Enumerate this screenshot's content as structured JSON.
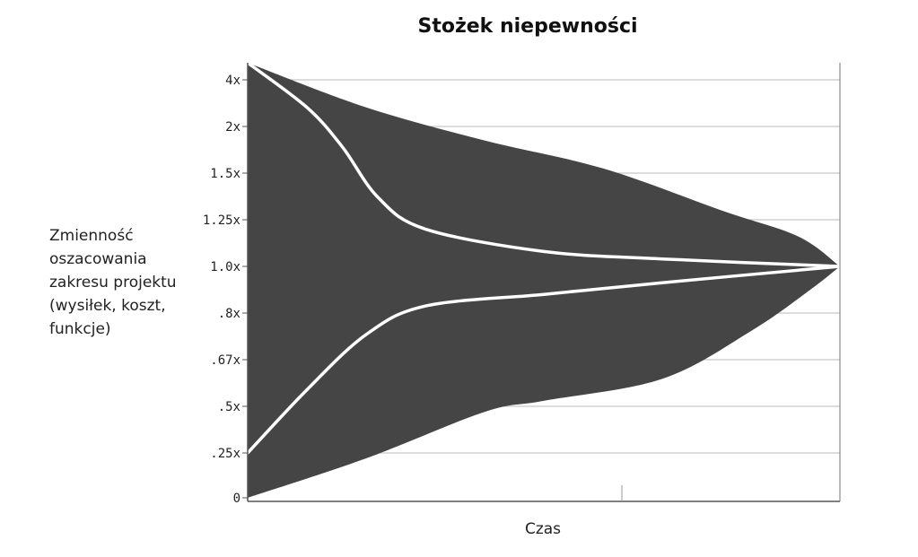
{
  "chart_data": {
    "type": "area",
    "title": "Stożek niepewności",
    "xlabel": "Czas",
    "ylabel_lines": [
      "Zmienność",
      "oszacowania",
      "zakresu projektu",
      "(wysiłek, koszt,",
      "funkcje)"
    ],
    "y_ticks": [
      "4x",
      "2x",
      "1.5x",
      "1.25x",
      "1.0x",
      ".8x",
      ".67x",
      ".5x",
      ".25x",
      "0"
    ],
    "xlim": [
      0,
      1
    ],
    "grid": true,
    "colors": {
      "cone_fill": "#454545",
      "curve": "#ffffff",
      "grid": "#b8b8b8",
      "axis": "#555555"
    },
    "series": [
      {
        "role": "cone-upper",
        "points": [
          [
            0.0,
            4.0
          ],
          [
            0.2,
            2.6
          ],
          [
            0.4,
            1.85
          ],
          [
            0.6,
            1.55
          ],
          [
            0.8,
            1.3
          ],
          [
            0.93,
            1.16
          ],
          [
            1.0,
            1.0
          ]
        ]
      },
      {
        "role": "cone-lower",
        "points": [
          [
            0.0,
            0.0
          ],
          [
            0.2,
            0.22
          ],
          [
            0.4,
            0.47
          ],
          [
            0.5,
            0.52
          ],
          [
            0.7,
            0.6
          ],
          [
            0.85,
            0.75
          ],
          [
            0.95,
            0.9
          ],
          [
            1.0,
            1.0
          ]
        ]
      },
      {
        "role": "estimate-upper",
        "points": [
          [
            0.0,
            4.0
          ],
          [
            0.1,
            2.6
          ],
          [
            0.16,
            1.78
          ],
          [
            0.22,
            1.37
          ],
          [
            0.3,
            1.2
          ],
          [
            0.5,
            1.08
          ],
          [
            0.7,
            1.04
          ],
          [
            1.0,
            1.0
          ]
        ]
      },
      {
        "role": "estimate-lower",
        "points": [
          [
            0.0,
            0.25
          ],
          [
            0.1,
            0.56
          ],
          [
            0.2,
            0.74
          ],
          [
            0.3,
            0.83
          ],
          [
            0.5,
            0.88
          ],
          [
            0.7,
            0.93
          ],
          [
            1.0,
            1.0
          ]
        ]
      }
    ]
  }
}
